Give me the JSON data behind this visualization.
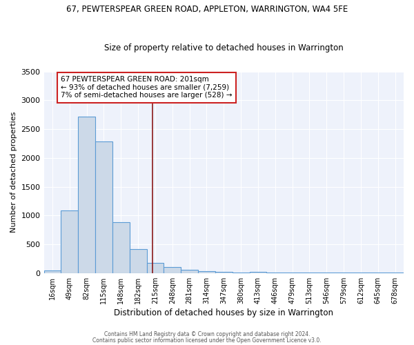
{
  "title1": "67, PEWTERSPEAR GREEN ROAD, APPLETON, WARRINGTON, WA4 5FE",
  "title2": "Size of property relative to detached houses in Warrington",
  "xlabel": "Distribution of detached houses by size in Warrington",
  "ylabel": "Number of detached properties",
  "categories": [
    "16sqm",
    "49sqm",
    "82sqm",
    "115sqm",
    "148sqm",
    "182sqm",
    "215sqm",
    "248sqm",
    "281sqm",
    "314sqm",
    "347sqm",
    "380sqm",
    "413sqm",
    "446sqm",
    "479sqm",
    "513sqm",
    "546sqm",
    "579sqm",
    "612sqm",
    "645sqm",
    "678sqm"
  ],
  "values": [
    50,
    1090,
    2720,
    2280,
    880,
    415,
    175,
    100,
    60,
    35,
    20,
    10,
    25,
    5,
    5,
    5,
    5,
    5,
    5,
    5,
    5
  ],
  "bar_color": "#ccd9e8",
  "bar_edge_color": "#5b9bd5",
  "vline_x": 5.85,
  "vline_color": "#8b1a1a",
  "annotation_text": "67 PEWTERSPEAR GREEN ROAD: 201sqm\n← 93% of detached houses are smaller (7,259)\n7% of semi-detached houses are larger (528) →",
  "annotation_box_color": "white",
  "annotation_box_edge": "#cc2222",
  "ylim": [
    0,
    3500
  ],
  "yticks": [
    0,
    500,
    1000,
    1500,
    2000,
    2500,
    3000,
    3500
  ],
  "bg_color": "#eef2fb",
  "grid_color": "white",
  "footer1": "Contains HM Land Registry data © Crown copyright and database right 2024.",
  "footer2": "Contains public sector information licensed under the Open Government Licence v3.0."
}
